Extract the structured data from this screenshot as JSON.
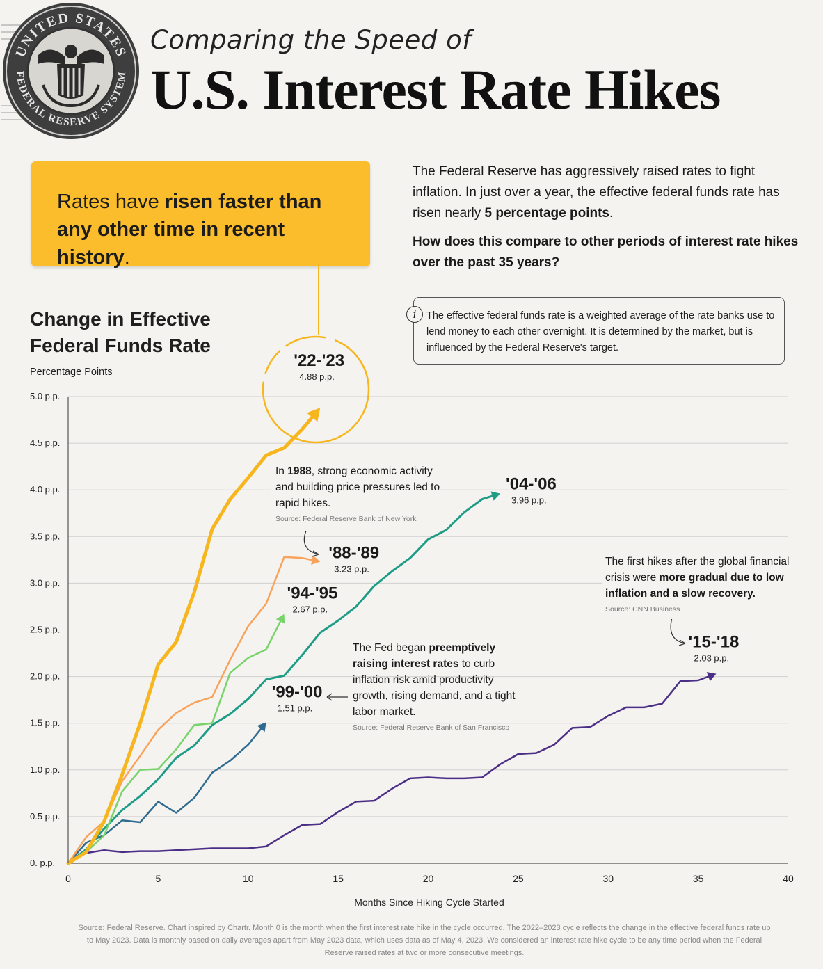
{
  "header": {
    "pre_title": "Comparing the Speed of",
    "title": "U.S. Interest Rate Hikes",
    "seal_text_top": "UNITED STATES",
    "seal_text_bottom": "FEDERAL RESERVE SYSTEM"
  },
  "callout": {
    "part1": "Rates have ",
    "bold": "risen faster than any other time in recent history",
    "part2": "."
  },
  "intro": {
    "text": "The Federal Reserve has aggressively raised rates to fight inflation. In just over a year, the effective federal funds rate has risen nearly ",
    "bold": "5 percentage points",
    "end": ".",
    "question": "How does this compare to other periods of interest rate hikes over the past 35 years?"
  },
  "info": {
    "icon": "i",
    "text": "The effective federal funds rate is a weighted average of the rate banks use to lend money to each other overnight. It is determined by the market, but is influenced by the Federal Reserve's target."
  },
  "annotations": {
    "a1988": {
      "pre": "In ",
      "bold": "1988",
      "post": ", strong economic activity and building price pressures led to rapid hikes.",
      "source": "Source: Federal Reserve Bank of New York"
    },
    "a1999": {
      "pre": "The Fed began ",
      "bold": "preemptively raising interest rates",
      "post": " to curb inflation risk amid productivity growth, rising demand, and a tight labor market.",
      "source": "Source: Federal Reserve Bank of San Francisco"
    },
    "a2015": {
      "pre": "The first hikes after the global financial crisis were ",
      "bold": "more gradual due to low inflation and a slow recovery.",
      "post": "",
      "source": "Source: CNN Business"
    }
  },
  "footer": "Source: Federal Reserve. Chart inspired by Chartr. Month 0 is the month when the first interest rate hike in the cycle occurred. The 2022–2023 cycle reflects the change in the effective federal funds rate up to May 2023. Data is monthly based on daily averages apart from May 2023 data, which uses data as of May 4, 2023. We considered an interest rate hike cycle to be any time period when the Federal Reserve raised rates at two or more consecutive meetings.",
  "colors": {
    "background": "#f4f3f0",
    "callout": "#fbbd2b",
    "s2223": "#f7b61e",
    "s8889": "#f9a35a",
    "s9495": "#79d36b",
    "s0406": "#1f9c86",
    "s9900": "#2f6a8f",
    "s1518": "#4b2f86"
  },
  "chart_data": {
    "type": "line",
    "title": "Change in Effective Federal Funds Rate",
    "subtitle": "Percentage Points",
    "xlabel": "Months Since Hiking Cycle Started",
    "ylabel": "Percentage Points",
    "xlim": [
      0,
      40
    ],
    "ylim": [
      0,
      5
    ],
    "xticks": [
      "0",
      "5",
      "10",
      "15",
      "20",
      "25",
      "30",
      "35",
      "40"
    ],
    "yticks": [
      "0. p.p.",
      "0.5 p.p.",
      "1.0 p.p.",
      "1.5 p.p.",
      "2.0 p.p.",
      "2.5 p.p.",
      "3.0 p.p.",
      "3.5 p.p.",
      "4.0 p.p.",
      "4.5 p.p.",
      "5.0 p.p."
    ],
    "grid": true,
    "series": [
      {
        "name": "'22-'23",
        "end_label": "4.88 p.p.",
        "color": "#f7b61e",
        "x": [
          0,
          1,
          2,
          3,
          4,
          5,
          6,
          7,
          8,
          9,
          10,
          11,
          12,
          13,
          14
        ],
        "y": [
          0,
          0.12,
          0.45,
          0.95,
          1.5,
          2.13,
          2.37,
          2.9,
          3.58,
          3.9,
          4.13,
          4.37,
          4.45,
          4.65,
          4.88
        ]
      },
      {
        "name": "'88-'89",
        "end_label": "3.23 p.p.",
        "color": "#f9a35a",
        "x": [
          0,
          1,
          2,
          3,
          4,
          5,
          6,
          7,
          8,
          9,
          10,
          11,
          12,
          13,
          14
        ],
        "y": [
          0,
          0.28,
          0.45,
          0.88,
          1.15,
          1.43,
          1.61,
          1.72,
          1.78,
          2.18,
          2.54,
          2.78,
          3.28,
          3.27,
          3.23
        ]
      },
      {
        "name": "'94-'95",
        "end_label": "2.67 p.p.",
        "color": "#79d36b",
        "x": [
          0,
          1,
          2,
          3,
          4,
          5,
          6,
          7,
          8,
          9,
          10,
          11,
          12
        ],
        "y": [
          0,
          0.12,
          0.3,
          0.77,
          1.0,
          1.01,
          1.22,
          1.48,
          1.5,
          2.04,
          2.2,
          2.29,
          2.67
        ]
      },
      {
        "name": "'04-'06",
        "end_label": "3.96 p.p.",
        "color": "#1f9c86",
        "x": [
          0,
          1,
          2,
          3,
          4,
          5,
          6,
          7,
          8,
          9,
          10,
          11,
          12,
          13,
          14,
          15,
          16,
          17,
          18,
          19,
          20,
          21,
          22,
          23,
          24
        ],
        "y": [
          0,
          0.15,
          0.37,
          0.57,
          0.72,
          0.9,
          1.13,
          1.26,
          1.48,
          1.6,
          1.76,
          1.97,
          2.01,
          2.23,
          2.47,
          2.6,
          2.75,
          2.97,
          3.13,
          3.27,
          3.47,
          3.57,
          3.76,
          3.9,
          3.96
        ]
      },
      {
        "name": "'99-'00",
        "end_label": "1.51 p.p.",
        "color": "#2f6a8f",
        "x": [
          0,
          1,
          2,
          3,
          4,
          5,
          6,
          7,
          8,
          9,
          10,
          11
        ],
        "y": [
          0,
          0.22,
          0.3,
          0.46,
          0.44,
          0.66,
          0.54,
          0.7,
          0.97,
          1.1,
          1.27,
          1.51
        ]
      },
      {
        "name": "'15-'18",
        "end_label": "2.03 p.p.",
        "color": "#4b2f86",
        "x": [
          0,
          1,
          2,
          3,
          4,
          5,
          6,
          7,
          8,
          9,
          10,
          11,
          12,
          13,
          14,
          15,
          16,
          17,
          18,
          19,
          20,
          21,
          22,
          23,
          24,
          25,
          26,
          27,
          28,
          29,
          30,
          31,
          32,
          33,
          34,
          35,
          36
        ],
        "y": [
          0,
          0.11,
          0.14,
          0.12,
          0.13,
          0.13,
          0.14,
          0.15,
          0.16,
          0.16,
          0.16,
          0.18,
          0.3,
          0.41,
          0.42,
          0.55,
          0.66,
          0.67,
          0.8,
          0.91,
          0.92,
          0.91,
          0.91,
          0.92,
          1.06,
          1.17,
          1.18,
          1.27,
          1.45,
          1.46,
          1.58,
          1.67,
          1.67,
          1.71,
          1.95,
          1.96,
          2.03
        ]
      }
    ]
  }
}
